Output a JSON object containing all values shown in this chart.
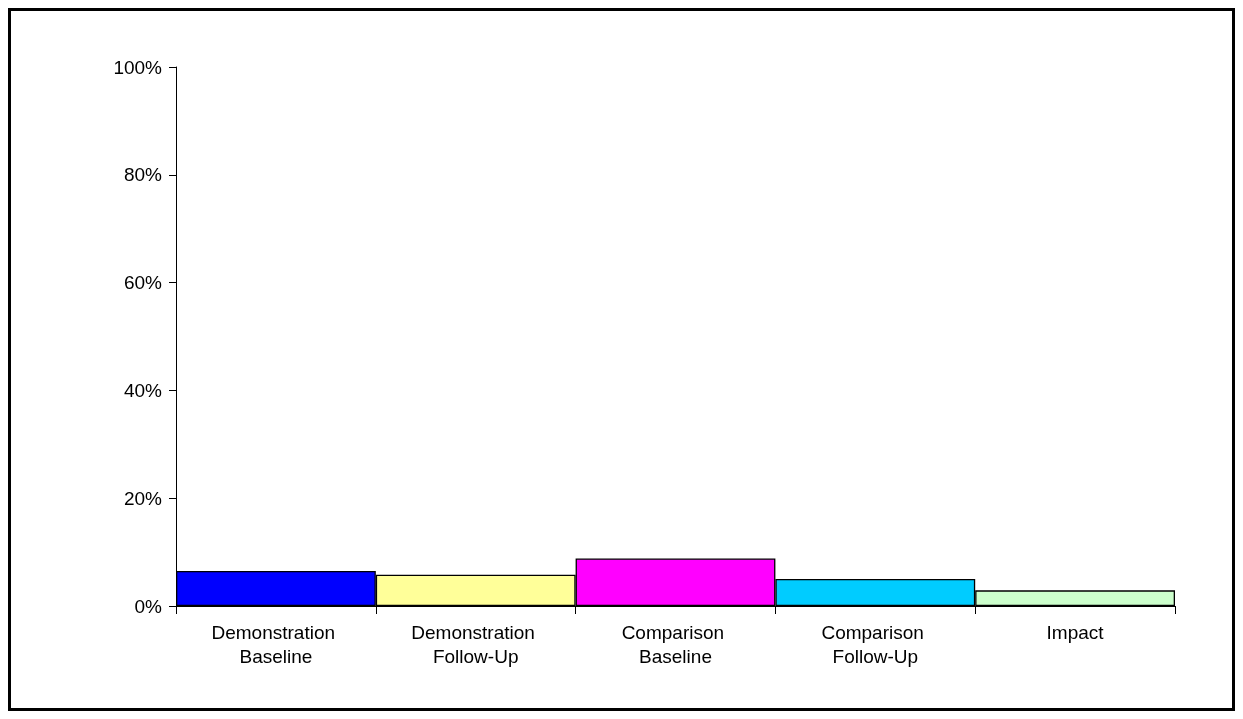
{
  "chart_data": {
    "type": "bar",
    "categories": [
      "Demonstration Baseline",
      "Demonstration Follow-Up",
      "Comparison Baseline",
      "Comparison Follow-Up",
      "Impact"
    ],
    "values": [
      6.5,
      5.8,
      8.8,
      5.0,
      2.9
    ],
    "colors": [
      "#0000ff",
      "#ffff99",
      "#ff00ff",
      "#00ccff",
      "#ccffcc"
    ],
    "ylim": [
      0,
      100
    ],
    "yticks": [
      {
        "value": 0,
        "label": "0%"
      },
      {
        "value": 20,
        "label": "20%"
      },
      {
        "value": 40,
        "label": "40%"
      },
      {
        "value": 60,
        "label": "60%"
      },
      {
        "value": 80,
        "label": "80%"
      },
      {
        "value": 100,
        "label": "100%"
      }
    ],
    "grid": false
  }
}
